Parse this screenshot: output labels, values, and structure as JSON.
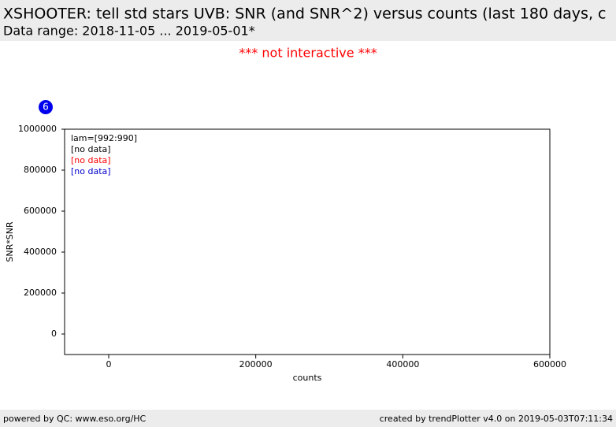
{
  "header": {
    "title": "XSHOOTER: tell std stars UVB: SNR (and SNR^2) versus counts (last 180 days, c",
    "subtitle": "Data range: 2018-11-05 ... 2019-05-01*"
  },
  "notice": "*** not interactive ***",
  "chart_data": {
    "type": "scatter",
    "badge": "6",
    "xlabel": "counts",
    "ylabel": "SNR*SNR",
    "xlim": [
      -60000,
      600000
    ],
    "xticks": [
      0,
      200000,
      400000,
      600000
    ],
    "ylim": [
      -100000,
      1000000
    ],
    "yticks": [
      0,
      200000,
      400000,
      600000,
      800000,
      1000000
    ],
    "legend": [
      {
        "text": "lam=[992:990]",
        "color": "#000000"
      },
      {
        "text": "[no data]",
        "color": "#000000"
      },
      {
        "text": "[no data]",
        "color": "#ff0000"
      },
      {
        "text": "[no data]",
        "color": "#0000cc"
      }
    ],
    "series": []
  },
  "footer": {
    "left": "powered by QC: www.eso.org/HC",
    "right": "created by trendPlotter v4.0 on 2019-05-03T07:11:34"
  }
}
